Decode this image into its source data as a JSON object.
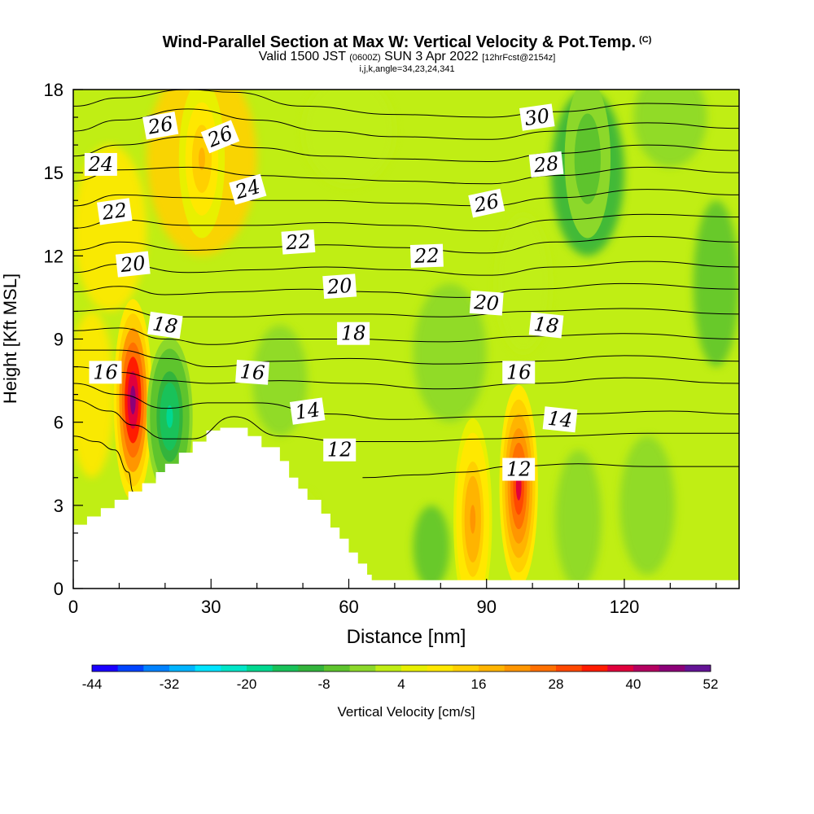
{
  "chart_data": {
    "type": "heatmap",
    "title": "Wind-Parallel Section at Max W: Vertical Velocity & Pot.Temp.",
    "title_mark": "(C)",
    "subtitle_main": "Valid 1500 JST",
    "subtitle_z": "(0600Z)",
    "subtitle_date": "SUN 3 Apr 2022",
    "subtitle_fcst": "[12hrFcst@2154z]",
    "subtitle2": "i,j,k,angle=34,23,24,341",
    "xlabel": "Distance [nm]",
    "ylabel": "Height [Kft MSL]",
    "xlim": [
      0,
      145
    ],
    "ylim": [
      0,
      18
    ],
    "xticks": [
      0,
      30,
      60,
      90,
      120
    ],
    "yticks": [
      0,
      3,
      6,
      9,
      12,
      15,
      18
    ],
    "colorbar": {
      "label": "Vertical Velocity [cm/s]",
      "ticks": [
        -44,
        -32,
        -20,
        -8,
        4,
        16,
        28,
        40,
        52
      ],
      "range": [
        -44,
        52
      ],
      "colors": [
        "#1a00ff",
        "#0044ff",
        "#0082ff",
        "#00b4ff",
        "#00e4ff",
        "#00e6c8",
        "#00d890",
        "#19c25a",
        "#33b43c",
        "#5ec42d",
        "#8cd82a",
        "#c0ee14",
        "#e8f000",
        "#ffe800",
        "#ffd000",
        "#ffb400",
        "#ff9600",
        "#ff7000",
        "#ff4800",
        "#ff1c00",
        "#e0003c",
        "#b40060",
        "#8c0078",
        "#641496"
      ]
    },
    "vertical_velocity_cells": [
      {
        "x": 13,
        "y": 6.8,
        "peak": 45
      },
      {
        "x": 21,
        "y": 6.2,
        "peak": -18
      },
      {
        "x": 97,
        "y": 3.7,
        "peak": 36
      },
      {
        "x": 87,
        "y": 2.5,
        "peak": 22
      },
      {
        "x": 28,
        "y": 15.5,
        "peak": 16
      },
      {
        "x": 112,
        "y": 15.5,
        "peak": -8
      }
    ],
    "terrain_profile": [
      [
        0,
        2.3
      ],
      [
        3,
        2.3
      ],
      [
        3,
        2.6
      ],
      [
        6,
        2.6
      ],
      [
        6,
        2.9
      ],
      [
        9,
        2.9
      ],
      [
        9,
        3.2
      ],
      [
        12,
        3.2
      ],
      [
        12,
        3.5
      ],
      [
        15,
        3.5
      ],
      [
        15,
        3.8
      ],
      [
        18,
        3.8
      ],
      [
        18,
        4.2
      ],
      [
        20,
        4.2
      ],
      [
        20,
        4.5
      ],
      [
        23,
        4.5
      ],
      [
        23,
        4.9
      ],
      [
        26,
        4.9
      ],
      [
        26,
        5.3
      ],
      [
        29,
        5.3
      ],
      [
        29,
        5.7
      ],
      [
        32,
        5.7
      ],
      [
        32,
        5.8
      ],
      [
        38,
        5.8
      ],
      [
        38,
        5.5
      ],
      [
        41,
        5.5
      ],
      [
        41,
        5.1
      ],
      [
        45,
        5.1
      ],
      [
        45,
        4.6
      ],
      [
        47,
        4.6
      ],
      [
        47,
        4.0
      ],
      [
        49,
        4.0
      ],
      [
        49,
        3.6
      ],
      [
        51,
        3.6
      ],
      [
        51,
        3.2
      ],
      [
        54,
        3.2
      ],
      [
        54,
        2.7
      ],
      [
        56,
        2.7
      ],
      [
        56,
        2.2
      ],
      [
        58,
        2.2
      ],
      [
        58,
        1.8
      ],
      [
        60,
        1.8
      ],
      [
        60,
        1.3
      ],
      [
        62,
        1.3
      ],
      [
        62,
        0.9
      ],
      [
        64,
        0.9
      ],
      [
        64,
        0.5
      ],
      [
        65,
        0.5
      ],
      [
        65,
        0.3
      ],
      [
        145,
        0.3
      ]
    ],
    "contour_labels": [
      {
        "text": "26",
        "x": 19,
        "y": 16.7,
        "rot": 10
      },
      {
        "text": "26",
        "x": 32,
        "y": 16.3,
        "rot": 22
      },
      {
        "text": "24",
        "x": 6,
        "y": 15.3,
        "rot": 0
      },
      {
        "text": "24",
        "x": 38,
        "y": 14.4,
        "rot": 16
      },
      {
        "text": "22",
        "x": 9,
        "y": 13.6,
        "rot": 8
      },
      {
        "text": "22",
        "x": 49,
        "y": 12.5,
        "rot": 4
      },
      {
        "text": "22",
        "x": 77,
        "y": 12.0,
        "rot": 2
      },
      {
        "text": "20",
        "x": 13,
        "y": 11.7,
        "rot": 6
      },
      {
        "text": "20",
        "x": 58,
        "y": 10.9,
        "rot": 4
      },
      {
        "text": "20",
        "x": 90,
        "y": 10.3,
        "rot": -4
      },
      {
        "text": "18",
        "x": 20,
        "y": 9.5,
        "rot": -8
      },
      {
        "text": "18",
        "x": 61,
        "y": 9.2,
        "rot": 0
      },
      {
        "text": "18",
        "x": 103,
        "y": 9.5,
        "rot": -6
      },
      {
        "text": "16",
        "x": 7,
        "y": 7.8,
        "rot": 0
      },
      {
        "text": "16",
        "x": 39,
        "y": 7.8,
        "rot": -4
      },
      {
        "text": "16",
        "x": 97,
        "y": 7.8,
        "rot": 0
      },
      {
        "text": "14",
        "x": 51,
        "y": 6.4,
        "rot": 8
      },
      {
        "text": "14",
        "x": 106,
        "y": 6.1,
        "rot": -6
      },
      {
        "text": "12",
        "x": 58,
        "y": 5.0,
        "rot": 0
      },
      {
        "text": "12",
        "x": 97,
        "y": 4.3,
        "rot": 0
      },
      {
        "text": "30",
        "x": 101,
        "y": 17.0,
        "rot": 8
      },
      {
        "text": "28",
        "x": 103,
        "y": 15.3,
        "rot": 6
      },
      {
        "text": "26",
        "x": 90,
        "y": 13.9,
        "rot": 12
      }
    ],
    "isentropes": [
      [
        [
          0,
          5.5
        ],
        [
          5,
          5.3
        ],
        [
          9,
          5.0
        ],
        [
          12,
          4.2
        ],
        [
          13,
          3.5
        ]
      ],
      [
        [
          63,
          4.0
        ],
        [
          75,
          4.1
        ],
        [
          85,
          4.2
        ],
        [
          95,
          4.4
        ],
        [
          110,
          4.5
        ],
        [
          125,
          4.4
        ],
        [
          145,
          4.4
        ]
      ],
      [
        [
          0,
          6.8
        ],
        [
          8,
          6.4
        ],
        [
          13,
          5.9
        ],
        [
          20,
          5.4
        ],
        [
          26,
          5.4
        ],
        [
          35,
          6.2
        ],
        [
          45,
          5.5
        ],
        [
          60,
          5.3
        ],
        [
          75,
          5.3
        ],
        [
          90,
          5.4
        ],
        [
          105,
          5.5
        ],
        [
          125,
          5.6
        ],
        [
          145,
          5.6
        ]
      ],
      [
        [
          0,
          7.4
        ],
        [
          10,
          7.0
        ],
        [
          20,
          6.5
        ],
        [
          30,
          6.7
        ],
        [
          40,
          6.7
        ],
        [
          55,
          6.3
        ],
        [
          70,
          6.1
        ],
        [
          90,
          6.2
        ],
        [
          110,
          6.3
        ],
        [
          130,
          6.4
        ],
        [
          145,
          6.3
        ]
      ],
      [
        [
          0,
          8.0
        ],
        [
          10,
          7.8
        ],
        [
          20,
          7.5
        ],
        [
          30,
          7.4
        ],
        [
          45,
          7.5
        ],
        [
          60,
          7.4
        ],
        [
          80,
          7.2
        ],
        [
          100,
          7.4
        ],
        [
          120,
          7.6
        ],
        [
          145,
          7.4
        ]
      ],
      [
        [
          0,
          8.6
        ],
        [
          10,
          8.6
        ],
        [
          20,
          8.3
        ],
        [
          30,
          8.0
        ],
        [
          45,
          8.2
        ],
        [
          60,
          8.3
        ],
        [
          80,
          8.1
        ],
        [
          100,
          8.2
        ],
        [
          120,
          8.4
        ],
        [
          145,
          8.2
        ]
      ],
      [
        [
          0,
          9.3
        ],
        [
          10,
          9.4
        ],
        [
          20,
          9.0
        ],
        [
          30,
          8.8
        ],
        [
          45,
          9.0
        ],
        [
          60,
          9.0
        ],
        [
          80,
          8.9
        ],
        [
          100,
          9.1
        ],
        [
          120,
          9.2
        ],
        [
          145,
          9.0
        ]
      ],
      [
        [
          0,
          10.0
        ],
        [
          10,
          10.1
        ],
        [
          20,
          9.8
        ],
        [
          35,
          9.8
        ],
        [
          50,
          9.9
        ],
        [
          65,
          9.9
        ],
        [
          80,
          9.8
        ],
        [
          100,
          10.0
        ],
        [
          120,
          10.1
        ],
        [
          145,
          9.9
        ]
      ],
      [
        [
          0,
          10.7
        ],
        [
          10,
          10.9
        ],
        [
          20,
          10.6
        ],
        [
          35,
          10.7
        ],
        [
          50,
          10.8
        ],
        [
          65,
          10.7
        ],
        [
          85,
          10.5
        ],
        [
          100,
          10.8
        ],
        [
          120,
          11.0
        ],
        [
          145,
          10.8
        ]
      ],
      [
        [
          0,
          11.4
        ],
        [
          10,
          11.7
        ],
        [
          25,
          11.4
        ],
        [
          40,
          11.5
        ],
        [
          55,
          11.6
        ],
        [
          70,
          11.5
        ],
        [
          90,
          11.3
        ],
        [
          105,
          11.6
        ],
        [
          125,
          11.8
        ],
        [
          145,
          11.6
        ]
      ],
      [
        [
          0,
          12.2
        ],
        [
          10,
          12.5
        ],
        [
          25,
          12.2
        ],
        [
          40,
          12.3
        ],
        [
          55,
          12.4
        ],
        [
          70,
          12.3
        ],
        [
          90,
          12.1
        ],
        [
          105,
          12.5
        ],
        [
          125,
          12.7
        ],
        [
          145,
          12.5
        ]
      ],
      [
        [
          0,
          13.0
        ],
        [
          10,
          13.3
        ],
        [
          25,
          13.1
        ],
        [
          40,
          13.1
        ],
        [
          55,
          13.2
        ],
        [
          70,
          13.1
        ],
        [
          90,
          12.9
        ],
        [
          105,
          13.3
        ],
        [
          125,
          13.5
        ],
        [
          145,
          13.4
        ]
      ],
      [
        [
          0,
          13.8
        ],
        [
          10,
          14.2
        ],
        [
          25,
          14.1
        ],
        [
          40,
          14.0
        ],
        [
          55,
          14.0
        ],
        [
          70,
          13.9
        ],
        [
          90,
          13.8
        ],
        [
          105,
          14.1
        ],
        [
          125,
          14.4
        ],
        [
          145,
          14.2
        ]
      ],
      [
        [
          0,
          14.7
        ],
        [
          10,
          15.1
        ],
        [
          25,
          15.2
        ],
        [
          40,
          14.9
        ],
        [
          55,
          14.8
        ],
        [
          70,
          14.7
        ],
        [
          90,
          14.6
        ],
        [
          105,
          14.9
        ],
        [
          125,
          15.2
        ],
        [
          145,
          15.0
        ]
      ],
      [
        [
          0,
          15.6
        ],
        [
          10,
          16.0
        ],
        [
          25,
          16.3
        ],
        [
          40,
          15.9
        ],
        [
          55,
          15.6
        ],
        [
          70,
          15.5
        ],
        [
          90,
          15.4
        ],
        [
          105,
          15.7
        ],
        [
          125,
          16.0
        ],
        [
          145,
          15.8
        ]
      ],
      [
        [
          0,
          16.5
        ],
        [
          10,
          16.9
        ],
        [
          25,
          17.3
        ],
        [
          40,
          16.9
        ],
        [
          55,
          16.5
        ],
        [
          70,
          16.3
        ],
        [
          90,
          16.2
        ],
        [
          105,
          16.5
        ],
        [
          125,
          16.8
        ],
        [
          145,
          16.6
        ]
      ],
      [
        [
          0,
          17.4
        ],
        [
          10,
          17.7
        ],
        [
          25,
          18.0
        ],
        [
          35,
          17.9
        ],
        [
          50,
          17.4
        ],
        [
          70,
          17.1
        ],
        [
          90,
          17.0
        ],
        [
          105,
          17.2
        ],
        [
          125,
          17.5
        ],
        [
          145,
          17.4
        ]
      ]
    ]
  }
}
